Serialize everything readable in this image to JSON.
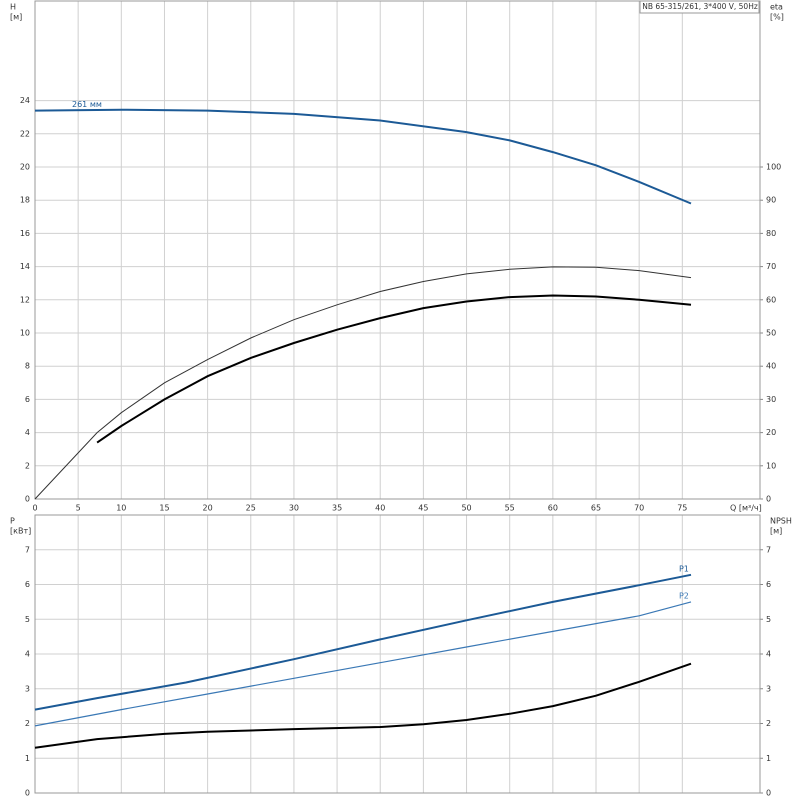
{
  "chart_data": [
    {
      "type": "line",
      "title": "NB 65-315/261, 3*400 V, 50Hz",
      "ylabel": "H",
      "yunit": "[м]",
      "y2label": "eta",
      "y2unit": "[%]",
      "xlabel": "Q [м³/ч]",
      "xlim": [
        0,
        84
      ],
      "xticks": [
        0,
        5,
        10,
        15,
        20,
        25,
        30,
        35,
        40,
        45,
        50,
        55,
        60,
        65,
        70,
        75
      ],
      "ylim": [
        0,
        30
      ],
      "yticks": [
        0,
        2,
        4,
        6,
        8,
        10,
        12,
        14,
        16,
        18,
        20,
        22,
        24
      ],
      "y2lim": [
        0,
        150
      ],
      "y2ticks": [
        0,
        10,
        20,
        30,
        40,
        50,
        60,
        70,
        80,
        90,
        100
      ],
      "grid": true,
      "series": [
        {
          "name": "261 мм",
          "color": "#1c5a96",
          "width": 2,
          "x": [
            0,
            10,
            20,
            30,
            40,
            50,
            55,
            60,
            65,
            70,
            76
          ],
          "values": [
            23.4,
            23.45,
            23.4,
            23.2,
            22.8,
            22.1,
            21.6,
            20.9,
            20.1,
            19.1,
            17.8
          ]
        },
        {
          "color": "#000000",
          "width": 2,
          "axis": "y2",
          "x": [
            7.2,
            10,
            15,
            20,
            25,
            30,
            35,
            40,
            45,
            50,
            55,
            60,
            65,
            70,
            76
          ],
          "values": [
            17,
            22,
            30,
            37,
            42.5,
            47,
            51,
            54.5,
            57.5,
            59.5,
            60.8,
            61.3,
            61,
            60,
            58.5
          ]
        },
        {
          "color": "#333333",
          "width": 1,
          "axis": "y2",
          "x": [
            0,
            7.2,
            10,
            15,
            20,
            25,
            30,
            35,
            40,
            45,
            50,
            55,
            60,
            65,
            70,
            76
          ],
          "values": [
            0,
            20,
            26,
            35,
            42,
            48.5,
            54,
            58.5,
            62.5,
            65.5,
            67.8,
            69.2,
            69.9,
            69.8,
            68.8,
            66.7
          ]
        }
      ]
    },
    {
      "type": "line",
      "ylabel": "P",
      "yunit": "[кВт]",
      "y2label": "NPSH",
      "y2unit": "[м]",
      "xlim": [
        0,
        84
      ],
      "xticks": [
        0,
        5,
        10,
        15,
        20,
        25,
        30,
        35,
        40,
        45,
        50,
        55,
        60,
        65,
        70,
        75
      ],
      "ylim": [
        0,
        8
      ],
      "yticks": [
        0,
        1,
        2,
        3,
        4,
        5,
        6,
        7
      ],
      "y2lim": [
        0,
        8
      ],
      "y2ticks": [
        0,
        1,
        2,
        3,
        4,
        5,
        6,
        7
      ],
      "grid": true,
      "series": [
        {
          "name": "P1",
          "color": "#1c5a96",
          "width": 2,
          "x": [
            0,
            7.2,
            17.5,
            30,
            40,
            50,
            60,
            70,
            76
          ],
          "values": [
            2.4,
            2.73,
            3.18,
            3.85,
            4.42,
            4.97,
            5.5,
            5.98,
            6.28
          ]
        },
        {
          "name": "P2",
          "color": "#3a78b5",
          "width": 1.2,
          "x": [
            0,
            10,
            20,
            30,
            40,
            50,
            60,
            70,
            76
          ],
          "values": [
            1.93,
            2.4,
            2.85,
            3.3,
            3.75,
            4.2,
            4.65,
            5.1,
            5.5
          ]
        },
        {
          "color": "#000000",
          "width": 2,
          "axis": "y2",
          "x": [
            0,
            7.2,
            15,
            20,
            30,
            40,
            45,
            50,
            55,
            60,
            65,
            70,
            76
          ],
          "values": [
            1.3,
            1.55,
            1.7,
            1.76,
            1.84,
            1.9,
            1.98,
            2.1,
            2.28,
            2.5,
            2.8,
            3.2,
            3.72
          ]
        }
      ]
    }
  ]
}
